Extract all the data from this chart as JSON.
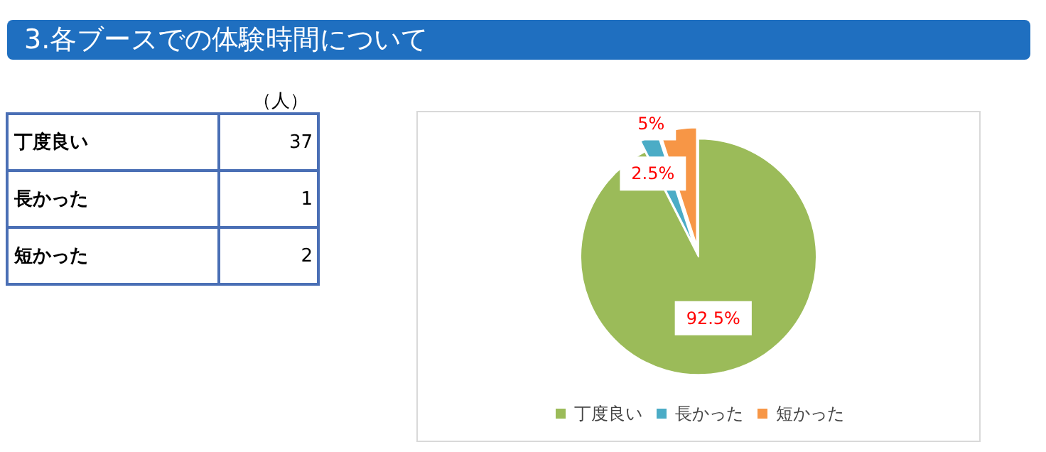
{
  "chart_data": [
    {
      "type": "other",
      "title": "3.各ブースでの体験時間について",
      "annotations": [
        "（人）"
      ],
      "categories": [
        "丁度良い",
        "長かった",
        "短かった"
      ],
      "values": [
        37,
        1,
        2
      ],
      "data_labels": true
    },
    {
      "type": "pie",
      "categories": [
        "丁度良い",
        "長かった",
        "短かった"
      ],
      "values": [
        92.5,
        2.5,
        5
      ],
      "colors": [
        "#9bbb59",
        "#4bacc6",
        "#f79646"
      ],
      "value_labels": [
        "92.5%",
        "2.5%",
        "5%"
      ],
      "legend": "bottom"
    }
  ]
}
